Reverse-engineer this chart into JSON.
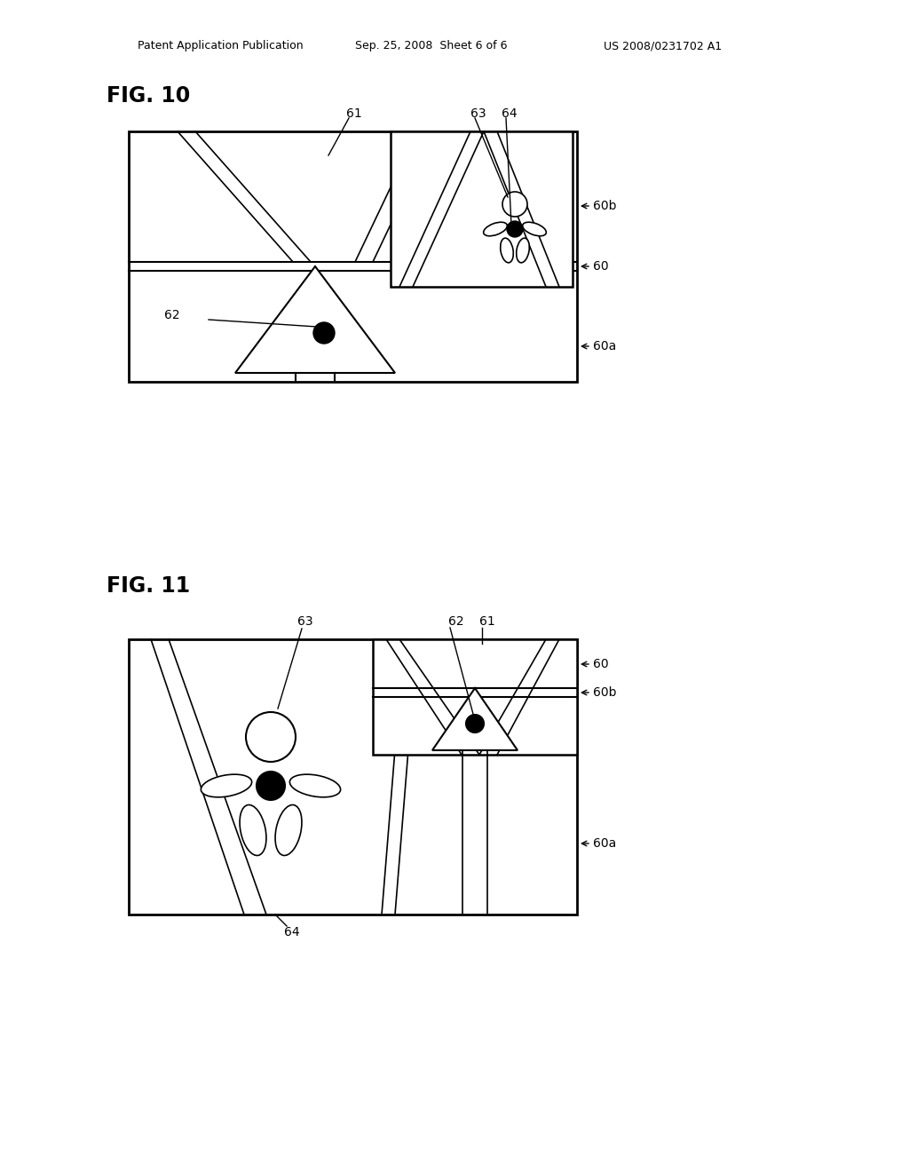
{
  "bg_color": "#ffffff",
  "line_color": "#000000",
  "header_left": "Patent Application Publication",
  "header_mid": "Sep. 25, 2008  Sheet 6 of 6",
  "header_right": "US 2008/0231702 A1",
  "fig10_title": "FIG. 10",
  "fig11_title": "FIG. 11"
}
